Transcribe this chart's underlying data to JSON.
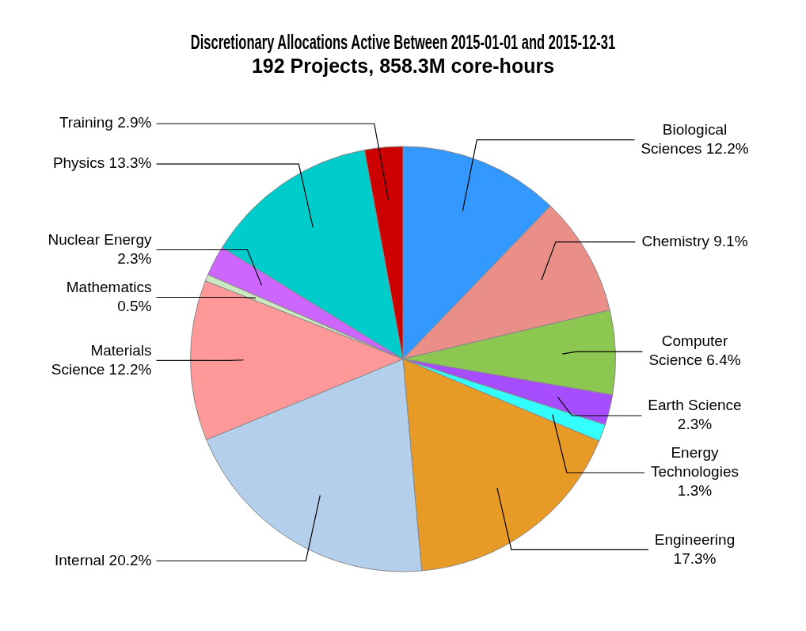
{
  "chart_data": {
    "type": "pie",
    "title": "Discretionary Allocations Active Between 2015-01-01 and 2015-12-31",
    "subtitle": "192 Projects, 858.3M core-hours",
    "categories": [
      "Biological Sciences",
      "Chemistry",
      "Computer Science",
      "Earth Science",
      "Energy Technologies",
      "Engineering",
      "Internal",
      "Materials Science",
      "Mathematics",
      "Nuclear Energy",
      "Physics",
      "Training"
    ],
    "values": [
      12.2,
      9.1,
      6.4,
      2.3,
      1.3,
      17.3,
      20.2,
      12.2,
      0.5,
      2.3,
      13.3,
      2.9
    ],
    "value_labels": [
      "12.2%",
      "9.1%",
      "6.4%",
      "2.3%",
      "1.3%",
      "17.3%",
      "20.2%",
      "12.2%",
      "0.5%",
      "2.3%",
      "13.3%",
      "2.9%"
    ],
    "colors": [
      "#3399ff",
      "#ea8f88",
      "#8cc751",
      "#a64dff",
      "#33ffff",
      "#e89a26",
      "#b3cfec",
      "#ff9999",
      "#cce8c0",
      "#cc66ff",
      "#00cccc",
      "#cc0000"
    ],
    "legend": false
  }
}
